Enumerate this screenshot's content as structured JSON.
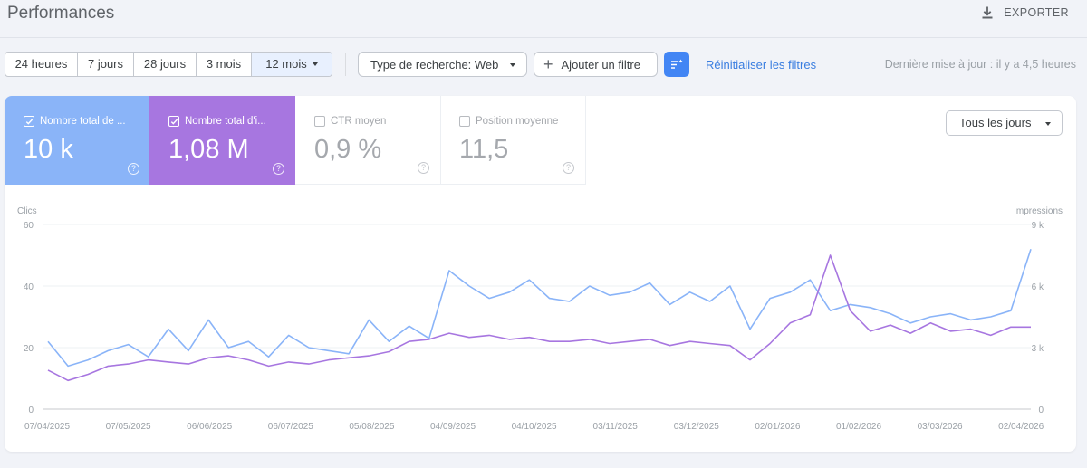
{
  "header": {
    "title": "Performances",
    "export_label": "EXPORTER"
  },
  "filters": {
    "date_ranges": [
      "24 heures",
      "7 jours",
      "28 jours",
      "3 mois",
      "12 mois"
    ],
    "selected_range": "12 mois",
    "search_type": "Type de recherche: Web",
    "add_filter": "Ajouter un filtre",
    "reset": "Réinitialiser les filtres",
    "last_update": "Dernière mise à jour : il y a 4,5 heures"
  },
  "metrics": {
    "clicks": {
      "label": "Nombre total de ...",
      "value": "10 k",
      "checked": true,
      "color": "#8ab4f8"
    },
    "impressions": {
      "label": "Nombre total d'i...",
      "value": "1,08 M",
      "checked": true,
      "color": "#a776e0"
    },
    "ctr": {
      "label": "CTR moyen",
      "value": "0,9 %",
      "checked": false
    },
    "position": {
      "label": "Position moyenne",
      "value": "11,5",
      "checked": false
    }
  },
  "days_filter": "Tous les jours",
  "chart_data": {
    "type": "line",
    "x": [
      "2025-04-07",
      "2025-04-14",
      "2025-04-21",
      "2025-04-28",
      "2025-05-07",
      "2025-05-14",
      "2025-05-21",
      "2025-05-28",
      "2025-06-06",
      "2025-06-13",
      "2025-06-20",
      "2025-06-27",
      "2025-07-06",
      "2025-07-13",
      "2025-07-20",
      "2025-07-27",
      "2025-08-05",
      "2025-08-12",
      "2025-08-19",
      "2025-08-26",
      "2025-09-04",
      "2025-09-11",
      "2025-09-18",
      "2025-09-25",
      "2025-10-04",
      "2025-10-11",
      "2025-10-18",
      "2025-10-25",
      "2025-11-03",
      "2025-11-10",
      "2025-11-17",
      "2025-11-24",
      "2025-12-03",
      "2025-12-10",
      "2025-12-17",
      "2025-12-24",
      "2026-01-02",
      "2026-01-09",
      "2026-01-16",
      "2026-01-23",
      "2026-02-01",
      "2026-02-08",
      "2026-02-15",
      "2026-02-22",
      "2026-03-03",
      "2026-03-10",
      "2026-03-17",
      "2026-03-24",
      "2026-04-02",
      "2026-04-05"
    ],
    "x_ticks": [
      "07/04/2025",
      "07/05/2025",
      "06/06/2025",
      "06/07/2025",
      "05/08/2025",
      "04/09/2025",
      "04/10/2025",
      "03/11/2025",
      "03/12/2025",
      "02/01/2026",
      "01/02/2026",
      "03/03/2026",
      "02/04/2026"
    ],
    "y_left": {
      "label": "Clics",
      "ticks": [
        "0",
        "20",
        "40",
        "60"
      ],
      "range": [
        0,
        60
      ]
    },
    "y_right": {
      "label": "Impressions",
      "ticks": [
        "0",
        "3 k",
        "6 k",
        "9 k"
      ],
      "range": [
        0,
        9000
      ]
    },
    "series": [
      {
        "name": "Nombre total de clics",
        "axis": "left",
        "color": "#8ab4f8",
        "values": [
          22,
          14,
          16,
          19,
          21,
          17,
          26,
          19,
          29,
          20,
          22,
          17,
          24,
          20,
          19,
          18,
          29,
          22,
          27,
          23,
          45,
          40,
          36,
          38,
          42,
          36,
          35,
          40,
          37,
          38,
          41,
          34,
          38,
          35,
          40,
          26,
          36,
          38,
          42,
          32,
          34,
          33,
          31,
          28,
          30,
          31,
          29,
          30,
          32,
          52
        ]
      },
      {
        "name": "Nombre total d'impressions",
        "axis": "right",
        "color": "#a776e0",
        "values": [
          1900,
          1400,
          1700,
          2100,
          2200,
          2400,
          2300,
          2200,
          2500,
          2600,
          2400,
          2100,
          2300,
          2200,
          2400,
          2500,
          2600,
          2800,
          3300,
          3400,
          3700,
          3500,
          3600,
          3400,
          3500,
          3300,
          3300,
          3400,
          3200,
          3300,
          3400,
          3100,
          3300,
          3200,
          3100,
          2400,
          3200,
          4200,
          4600,
          7500,
          4800,
          3800,
          4100,
          3700,
          4200,
          3800,
          3900,
          3600,
          4000,
          4000
        ]
      }
    ],
    "grid": true,
    "legend": "none"
  }
}
